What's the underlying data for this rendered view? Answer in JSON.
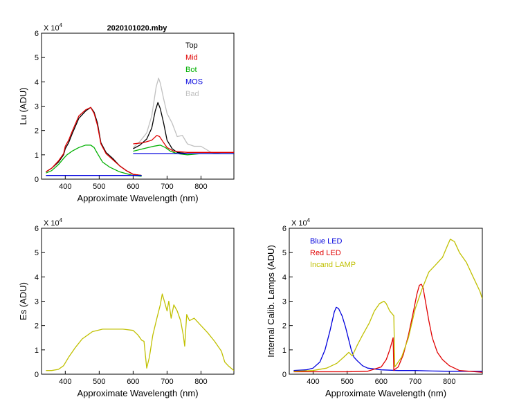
{
  "figure_title": "2020101020.mby",
  "chart_data": [
    {
      "type": "line",
      "title": "2020101020.mby",
      "xlabel": "Approximate Wavelength (nm)",
      "ylabel": "Lu (ADU)",
      "multiplier_label": "X 10",
      "multiplier_exp": "4",
      "xlim": [
        330,
        897
      ],
      "ylim": [
        0,
        6
      ],
      "xticks": [
        400,
        500,
        600,
        700,
        800
      ],
      "yticks": [
        0,
        1,
        2,
        3,
        4,
        5,
        6
      ],
      "legend": [
        {
          "name": "Top",
          "color": "#000000"
        },
        {
          "name": "Mid",
          "color": "#e00000"
        },
        {
          "name": "Bot",
          "color": "#00b000"
        },
        {
          "name": "MOS",
          "color": "#0000dd"
        },
        {
          "name": "Bad",
          "color": "#c0c0c0"
        }
      ],
      "series": [
        {
          "name": "Bad",
          "color": "#c0c0c0",
          "x": [
            600,
            620,
            640,
            655,
            668,
            675,
            680,
            690,
            700,
            715,
            730,
            745,
            760,
            780,
            800,
            830,
            860,
            897
          ],
          "y": [
            1.3,
            1.55,
            1.9,
            2.6,
            3.8,
            4.15,
            3.95,
            3.3,
            2.7,
            2.3,
            1.75,
            1.8,
            1.45,
            1.35,
            1.35,
            1.1,
            1.05,
            1.05
          ]
        },
        {
          "name": "Top",
          "color": "#000000",
          "x": [
            343,
            360,
            380,
            395,
            400,
            410,
            420,
            440,
            460,
            475,
            485,
            495,
            505,
            520,
            540,
            560,
            580,
            600,
            625
          ],
          "y": [
            0.3,
            0.45,
            0.7,
            1.0,
            1.25,
            1.5,
            1.85,
            2.5,
            2.8,
            2.95,
            2.75,
            2.3,
            1.5,
            1.1,
            0.85,
            0.55,
            0.35,
            0.2,
            0.15
          ]
        },
        {
          "name": "Top",
          "color": "#000000",
          "x": [
            600,
            620,
            640,
            655,
            665,
            673,
            680,
            690,
            700,
            715,
            730,
            760,
            800,
            850,
            897
          ],
          "y": [
            1.25,
            1.4,
            1.65,
            2.1,
            2.8,
            3.15,
            2.9,
            2.3,
            1.6,
            1.25,
            1.1,
            1.05,
            1.05,
            1.05,
            1.05
          ]
        },
        {
          "name": "Mid",
          "color": "#e00000",
          "x": [
            343,
            360,
            380,
            395,
            400,
            410,
            420,
            440,
            460,
            475,
            485,
            495,
            505,
            520,
            540,
            560,
            580,
            600,
            625
          ],
          "y": [
            0.3,
            0.45,
            0.75,
            1.05,
            1.35,
            1.6,
            1.95,
            2.6,
            2.85,
            2.95,
            2.7,
            2.2,
            1.45,
            1.05,
            0.8,
            0.55,
            0.35,
            0.2,
            0.15
          ]
        },
        {
          "name": "Mid",
          "color": "#e00000",
          "x": [
            600,
            630,
            655,
            670,
            678,
            690,
            700,
            720,
            760,
            800,
            897
          ],
          "y": [
            1.45,
            1.5,
            1.6,
            1.8,
            1.75,
            1.5,
            1.3,
            1.15,
            1.1,
            1.1,
            1.1
          ]
        },
        {
          "name": "Bot",
          "color": "#00b000",
          "x": [
            343,
            360,
            380,
            395,
            405,
            420,
            440,
            460,
            475,
            485,
            495,
            510,
            530,
            560,
            600,
            625
          ],
          "y": [
            0.25,
            0.35,
            0.6,
            0.85,
            1.0,
            1.15,
            1.3,
            1.4,
            1.4,
            1.3,
            1.05,
            0.7,
            0.5,
            0.3,
            0.15,
            0.12
          ]
        },
        {
          "name": "Bot",
          "color": "#00b000",
          "x": [
            600,
            630,
            660,
            680,
            695,
            710,
            730,
            760,
            800,
            897
          ],
          "y": [
            1.15,
            1.25,
            1.35,
            1.4,
            1.3,
            1.15,
            1.05,
            1.0,
            1.05,
            1.05
          ]
        },
        {
          "name": "MOS",
          "color": "#0000dd",
          "x": [
            343,
            625
          ],
          "y": [
            0.15,
            0.15
          ]
        },
        {
          "name": "MOS",
          "color": "#0000dd",
          "x": [
            600,
            897
          ],
          "y": [
            1.05,
            1.05
          ]
        }
      ]
    },
    {
      "type": "line",
      "xlabel": "Approximate Wavelength (nm)",
      "ylabel": "Es (ADU)",
      "multiplier_label": "X 10",
      "multiplier_exp": "4",
      "xlim": [
        330,
        897
      ],
      "ylim": [
        0,
        6
      ],
      "xticks": [
        400,
        500,
        600,
        700,
        800
      ],
      "yticks": [
        0,
        1,
        2,
        3,
        4,
        5,
        6
      ],
      "series": [
        {
          "name": "Es",
          "color": "#c0c000",
          "x": [
            343,
            360,
            380,
            395,
            410,
            430,
            450,
            480,
            510,
            540,
            570,
            600,
            615,
            625,
            632,
            640,
            648,
            658,
            670,
            680,
            686,
            692,
            700,
            705,
            712,
            720,
            730,
            740,
            748,
            752,
            758,
            766,
            780,
            800,
            820,
            840,
            860,
            870,
            880,
            897
          ],
          "y": [
            0.15,
            0.15,
            0.2,
            0.35,
            0.7,
            1.1,
            1.45,
            1.75,
            1.85,
            1.85,
            1.85,
            1.8,
            1.6,
            1.4,
            1.35,
            0.25,
            0.7,
            1.6,
            2.3,
            2.85,
            3.3,
            3.0,
            2.6,
            3.0,
            2.3,
            2.85,
            2.6,
            2.2,
            1.6,
            1.15,
            2.45,
            2.2,
            2.3,
            2.0,
            1.7,
            1.35,
            0.95,
            0.5,
            0.35,
            0.15
          ]
        }
      ]
    },
    {
      "type": "line",
      "xlabel": "Approximate Wavelength (nm)",
      "ylabel": "Internal Calib. Lamps  (ADU)",
      "multiplier_label": "X 10",
      "multiplier_exp": "4",
      "xlim": [
        330,
        897
      ],
      "ylim": [
        0,
        6
      ],
      "xticks": [
        400,
        500,
        600,
        700,
        800
      ],
      "yticks": [
        0,
        1,
        2,
        3,
        4,
        5,
        6
      ],
      "legend": [
        {
          "name": "Blue LED",
          "color": "#0000dd"
        },
        {
          "name": "Red LED",
          "color": "#e00000"
        },
        {
          "name": "Incand LAMP",
          "color": "#c0c000"
        }
      ],
      "series": [
        {
          "name": "Blue LED",
          "color": "#0000dd",
          "x": [
            343,
            380,
            400,
            420,
            435,
            450,
            462,
            468,
            475,
            485,
            495,
            505,
            512,
            520,
            530,
            545,
            560,
            600,
            650,
            700,
            750,
            800,
            897
          ],
          "y": [
            0.15,
            0.18,
            0.25,
            0.5,
            1.0,
            1.8,
            2.55,
            2.75,
            2.7,
            2.4,
            1.95,
            1.4,
            1.0,
            0.7,
            0.55,
            0.35,
            0.25,
            0.18,
            0.15,
            0.15,
            0.13,
            0.12,
            0.12
          ]
        },
        {
          "name": "Red LED",
          "color": "#e00000",
          "x": [
            343,
            400,
            500,
            560,
            600,
            615,
            625,
            635,
            637,
            640,
            650,
            665,
            680,
            695,
            705,
            712,
            718,
            723,
            730,
            740,
            750,
            765,
            780,
            800,
            830,
            897
          ],
          "y": [
            0.1,
            0.1,
            0.1,
            0.12,
            0.3,
            0.6,
            1.0,
            1.5,
            0.15,
            0.2,
            0.3,
            0.8,
            1.6,
            2.6,
            3.3,
            3.65,
            3.7,
            3.55,
            3.0,
            2.2,
            1.5,
            0.9,
            0.6,
            0.35,
            0.15,
            0.08
          ]
        },
        {
          "name": "Incand LAMP",
          "color": "#c0c000",
          "x": [
            343,
            400,
            440,
            470,
            490,
            505,
            515,
            530,
            545,
            565,
            580,
            595,
            608,
            615,
            625,
            637,
            640,
            660,
            680,
            700,
            720,
            740,
            760,
            780,
            795,
            803,
            815,
            830,
            850,
            870,
            890,
            897
          ],
          "y": [
            0.12,
            0.15,
            0.25,
            0.45,
            0.7,
            0.9,
            0.75,
            1.2,
            1.6,
            2.1,
            2.6,
            2.9,
            3.0,
            2.9,
            2.6,
            2.4,
            0.3,
            0.7,
            1.5,
            2.7,
            3.5,
            4.2,
            4.5,
            4.8,
            5.3,
            5.55,
            5.45,
            5.0,
            4.6,
            4.0,
            3.4,
            3.1
          ]
        }
      ]
    }
  ]
}
